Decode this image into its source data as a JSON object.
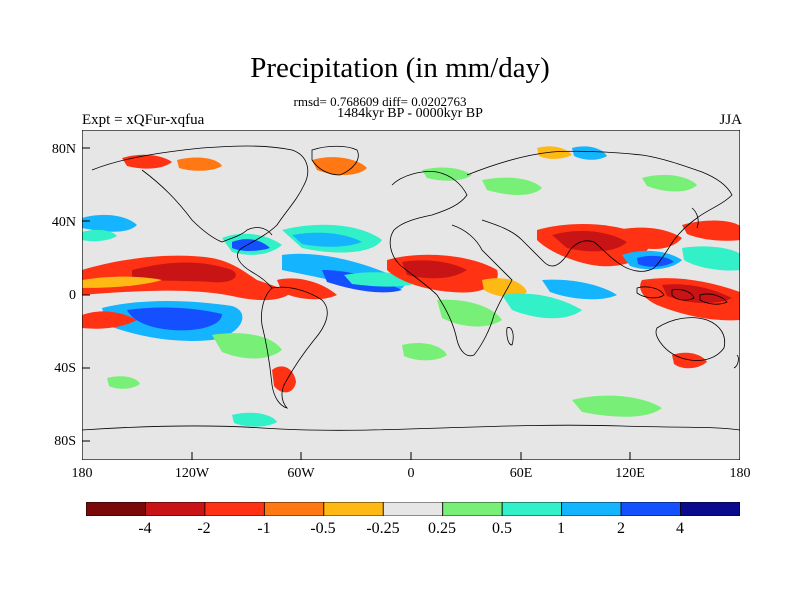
{
  "title": "Precipitation (in mm/day)",
  "stats_line": "rmsd= 0.768609 diff= 0.0202763",
  "period": "1484kyr BP - 0000kyr BP",
  "experiment": "Expt = xQFur-xqfua",
  "season": "JJA",
  "lat_ticks": [
    "80N",
    "40N",
    "0",
    "40S",
    "80S"
  ],
  "lon_ticks": [
    "180",
    "120W",
    "60W",
    "0",
    "60E",
    "120E",
    "180"
  ],
  "colorbar": {
    "labels": [
      "-4",
      "-2",
      "-1",
      "-0.5",
      "-0.25",
      "0.25",
      "0.5",
      "1",
      "2",
      "4"
    ],
    "colors": [
      "#7a0a0a",
      "#c81414",
      "#ff3214",
      "#ff7814",
      "#ffb914",
      "#e6e6e6",
      "#78f078",
      "#32f0c8",
      "#14b4ff",
      "#1450ff",
      "#0a0a8c"
    ]
  }
}
